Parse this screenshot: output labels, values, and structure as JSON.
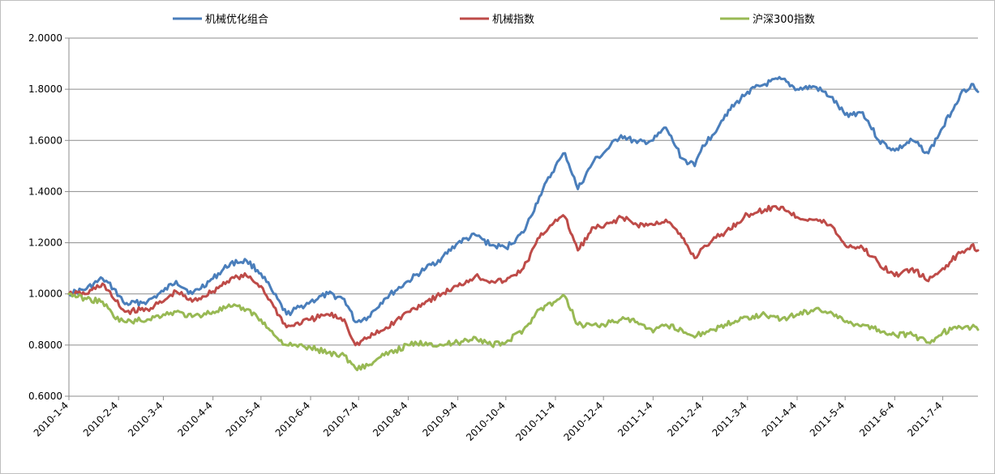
{
  "chart_data": {
    "type": "line",
    "title": "",
    "xlabel": "",
    "ylabel": "",
    "ylim": [
      0.6,
      2.0
    ],
    "y_ticks": [
      "0.6000",
      "0.8000",
      "1.0000",
      "1.2000",
      "1.4000",
      "1.6000",
      "1.8000",
      "2.0000"
    ],
    "x_ticks": [
      "2010-1-4",
      "2010-2-4",
      "2010-3-4",
      "2010-4-4",
      "2010-5-4",
      "2010-6-4",
      "2010-7-4",
      "2010-8-4",
      "2010-9-4",
      "2010-10-4",
      "2010-11-4",
      "2010-12-4",
      "2011-1-4",
      "2011-2-4",
      "2011-3-4",
      "2011-4-4",
      "2011-5-4",
      "2011-6-4",
      "2011-7-4"
    ],
    "x_range": [
      "2010-1-4",
      "2011-7-26"
    ],
    "grid": "horizontal",
    "legend_position": "top",
    "series": [
      {
        "name": "机械优化组合",
        "color": "#4a7ebb",
        "points": [
          [
            "2010-1-4",
            1.0
          ],
          [
            "2010-1-15",
            1.02
          ],
          [
            "2010-1-25",
            1.06
          ],
          [
            "2010-2-1",
            1.02
          ],
          [
            "2010-2-8",
            0.96
          ],
          [
            "2010-2-22",
            0.97
          ],
          [
            "2010-3-4",
            1.01
          ],
          [
            "2010-3-12",
            1.05
          ],
          [
            "2010-3-22",
            1.0
          ],
          [
            "2010-4-4",
            1.06
          ],
          [
            "2010-4-15",
            1.12
          ],
          [
            "2010-4-25",
            1.13
          ],
          [
            "2010-5-4",
            1.08
          ],
          [
            "2010-5-12",
            1.0
          ],
          [
            "2010-5-20",
            0.92
          ],
          [
            "2010-6-4",
            0.97
          ],
          [
            "2010-6-15",
            1.0
          ],
          [
            "2010-6-25",
            0.98
          ],
          [
            "2010-7-2",
            0.89
          ],
          [
            "2010-7-10",
            0.91
          ],
          [
            "2010-7-20",
            0.98
          ],
          [
            "2010-8-4",
            1.05
          ],
          [
            "2010-8-15",
            1.1
          ],
          [
            "2010-8-25",
            1.14
          ],
          [
            "2010-9-4",
            1.2
          ],
          [
            "2010-9-15",
            1.23
          ],
          [
            "2010-9-25",
            1.19
          ],
          [
            "2010-10-4",
            1.18
          ],
          [
            "2010-10-15",
            1.24
          ],
          [
            "2010-10-25",
            1.38
          ],
          [
            "2010-11-4",
            1.5
          ],
          [
            "2010-11-10",
            1.55
          ],
          [
            "2010-11-18",
            1.41
          ],
          [
            "2010-11-28",
            1.52
          ],
          [
            "2010-12-4",
            1.55
          ],
          [
            "2010-12-15",
            1.62
          ],
          [
            "2010-12-25",
            1.59
          ],
          [
            "2011-1-4",
            1.6
          ],
          [
            "2011-1-12",
            1.65
          ],
          [
            "2011-1-22",
            1.53
          ],
          [
            "2011-1-30",
            1.5
          ],
          [
            "2011-2-4",
            1.58
          ],
          [
            "2011-2-10",
            1.62
          ],
          [
            "2011-2-18",
            1.7
          ],
          [
            "2011-3-4",
            1.79
          ],
          [
            "2011-3-15",
            1.82
          ],
          [
            "2011-3-25",
            1.84
          ],
          [
            "2011-4-4",
            1.8
          ],
          [
            "2011-4-15",
            1.81
          ],
          [
            "2011-4-25",
            1.77
          ],
          [
            "2011-5-4",
            1.7
          ],
          [
            "2011-5-15",
            1.71
          ],
          [
            "2011-5-25",
            1.6
          ],
          [
            "2011-6-4",
            1.56
          ],
          [
            "2011-6-15",
            1.6
          ],
          [
            "2011-6-25",
            1.55
          ],
          [
            "2011-7-4",
            1.65
          ],
          [
            "2011-7-15",
            1.78
          ],
          [
            "2011-7-22",
            1.82
          ],
          [
            "2011-7-26",
            1.79
          ]
        ]
      },
      {
        "name": "机械指数",
        "color": "#be4b48",
        "points": [
          [
            "2010-1-4",
            1.0
          ],
          [
            "2010-1-15",
            1.0
          ],
          [
            "2010-1-25",
            1.04
          ],
          [
            "2010-2-1",
            0.98
          ],
          [
            "2010-2-8",
            0.93
          ],
          [
            "2010-2-22",
            0.94
          ],
          [
            "2010-3-4",
            0.97
          ],
          [
            "2010-3-12",
            1.01
          ],
          [
            "2010-3-22",
            0.97
          ],
          [
            "2010-4-4",
            1.01
          ],
          [
            "2010-4-15",
            1.06
          ],
          [
            "2010-4-25",
            1.07
          ],
          [
            "2010-5-4",
            1.03
          ],
          [
            "2010-5-12",
            0.95
          ],
          [
            "2010-5-20",
            0.87
          ],
          [
            "2010-6-4",
            0.9
          ],
          [
            "2010-6-15",
            0.92
          ],
          [
            "2010-6-25",
            0.9
          ],
          [
            "2010-7-2",
            0.8
          ],
          [
            "2010-7-10",
            0.83
          ],
          [
            "2010-7-20",
            0.86
          ],
          [
            "2010-8-4",
            0.93
          ],
          [
            "2010-8-15",
            0.97
          ],
          [
            "2010-8-25",
            1.0
          ],
          [
            "2010-9-4",
            1.03
          ],
          [
            "2010-9-15",
            1.07
          ],
          [
            "2010-9-25",
            1.05
          ],
          [
            "2010-10-4",
            1.05
          ],
          [
            "2010-10-15",
            1.1
          ],
          [
            "2010-10-25",
            1.22
          ],
          [
            "2010-11-4",
            1.29
          ],
          [
            "2010-11-10",
            1.3
          ],
          [
            "2010-11-18",
            1.17
          ],
          [
            "2010-11-28",
            1.26
          ],
          [
            "2010-12-4",
            1.26
          ],
          [
            "2010-12-15",
            1.3
          ],
          [
            "2010-12-25",
            1.27
          ],
          [
            "2011-1-4",
            1.27
          ],
          [
            "2011-1-12",
            1.29
          ],
          [
            "2011-1-22",
            1.22
          ],
          [
            "2011-1-30",
            1.14
          ],
          [
            "2011-2-4",
            1.18
          ],
          [
            "2011-2-10",
            1.21
          ],
          [
            "2011-2-18",
            1.24
          ],
          [
            "2011-3-4",
            1.31
          ],
          [
            "2011-3-15",
            1.33
          ],
          [
            "2011-3-25",
            1.34
          ],
          [
            "2011-4-4",
            1.3
          ],
          [
            "2011-4-15",
            1.29
          ],
          [
            "2011-4-25",
            1.27
          ],
          [
            "2011-5-4",
            1.19
          ],
          [
            "2011-5-15",
            1.18
          ],
          [
            "2011-5-25",
            1.12
          ],
          [
            "2011-6-4",
            1.07
          ],
          [
            "2011-6-15",
            1.1
          ],
          [
            "2011-6-25",
            1.05
          ],
          [
            "2011-7-4",
            1.1
          ],
          [
            "2011-7-15",
            1.16
          ],
          [
            "2011-7-22",
            1.19
          ],
          [
            "2011-7-26",
            1.17
          ]
        ]
      },
      {
        "name": "沪深300指数",
        "color": "#98b954",
        "points": [
          [
            "2010-1-4",
            1.0
          ],
          [
            "2010-1-15",
            0.98
          ],
          [
            "2010-1-25",
            0.97
          ],
          [
            "2010-2-1",
            0.91
          ],
          [
            "2010-2-8",
            0.89
          ],
          [
            "2010-2-22",
            0.9
          ],
          [
            "2010-3-4",
            0.92
          ],
          [
            "2010-3-12",
            0.93
          ],
          [
            "2010-3-22",
            0.91
          ],
          [
            "2010-4-4",
            0.93
          ],
          [
            "2010-4-15",
            0.95
          ],
          [
            "2010-4-25",
            0.94
          ],
          [
            "2010-5-4",
            0.9
          ],
          [
            "2010-5-12",
            0.84
          ],
          [
            "2010-5-20",
            0.8
          ],
          [
            "2010-6-4",
            0.79
          ],
          [
            "2010-6-15",
            0.77
          ],
          [
            "2010-6-25",
            0.76
          ],
          [
            "2010-7-2",
            0.71
          ],
          [
            "2010-7-10",
            0.72
          ],
          [
            "2010-7-20",
            0.76
          ],
          [
            "2010-8-4",
            0.8
          ],
          [
            "2010-8-15",
            0.81
          ],
          [
            "2010-8-25",
            0.8
          ],
          [
            "2010-9-4",
            0.81
          ],
          [
            "2010-9-15",
            0.83
          ],
          [
            "2010-9-25",
            0.8
          ],
          [
            "2010-10-4",
            0.81
          ],
          [
            "2010-10-15",
            0.86
          ],
          [
            "2010-10-25",
            0.94
          ],
          [
            "2010-11-4",
            0.97
          ],
          [
            "2010-11-10",
            0.99
          ],
          [
            "2010-11-18",
            0.88
          ],
          [
            "2010-11-28",
            0.88
          ],
          [
            "2010-12-4",
            0.88
          ],
          [
            "2010-12-15",
            0.9
          ],
          [
            "2010-12-25",
            0.89
          ],
          [
            "2011-1-4",
            0.85
          ],
          [
            "2011-1-12",
            0.88
          ],
          [
            "2011-1-22",
            0.86
          ],
          [
            "2011-1-30",
            0.83
          ],
          [
            "2011-2-4",
            0.85
          ],
          [
            "2011-2-10",
            0.86
          ],
          [
            "2011-2-18",
            0.88
          ],
          [
            "2011-3-4",
            0.91
          ],
          [
            "2011-3-15",
            0.92
          ],
          [
            "2011-3-25",
            0.9
          ],
          [
            "2011-4-4",
            0.92
          ],
          [
            "2011-4-15",
            0.94
          ],
          [
            "2011-4-25",
            0.93
          ],
          [
            "2011-5-4",
            0.89
          ],
          [
            "2011-5-15",
            0.88
          ],
          [
            "2011-5-25",
            0.86
          ],
          [
            "2011-6-4",
            0.84
          ],
          [
            "2011-6-15",
            0.84
          ],
          [
            "2011-6-25",
            0.81
          ],
          [
            "2011-7-4",
            0.85
          ],
          [
            "2011-7-15",
            0.87
          ],
          [
            "2011-7-22",
            0.87
          ],
          [
            "2011-7-26",
            0.86
          ]
        ]
      }
    ]
  }
}
